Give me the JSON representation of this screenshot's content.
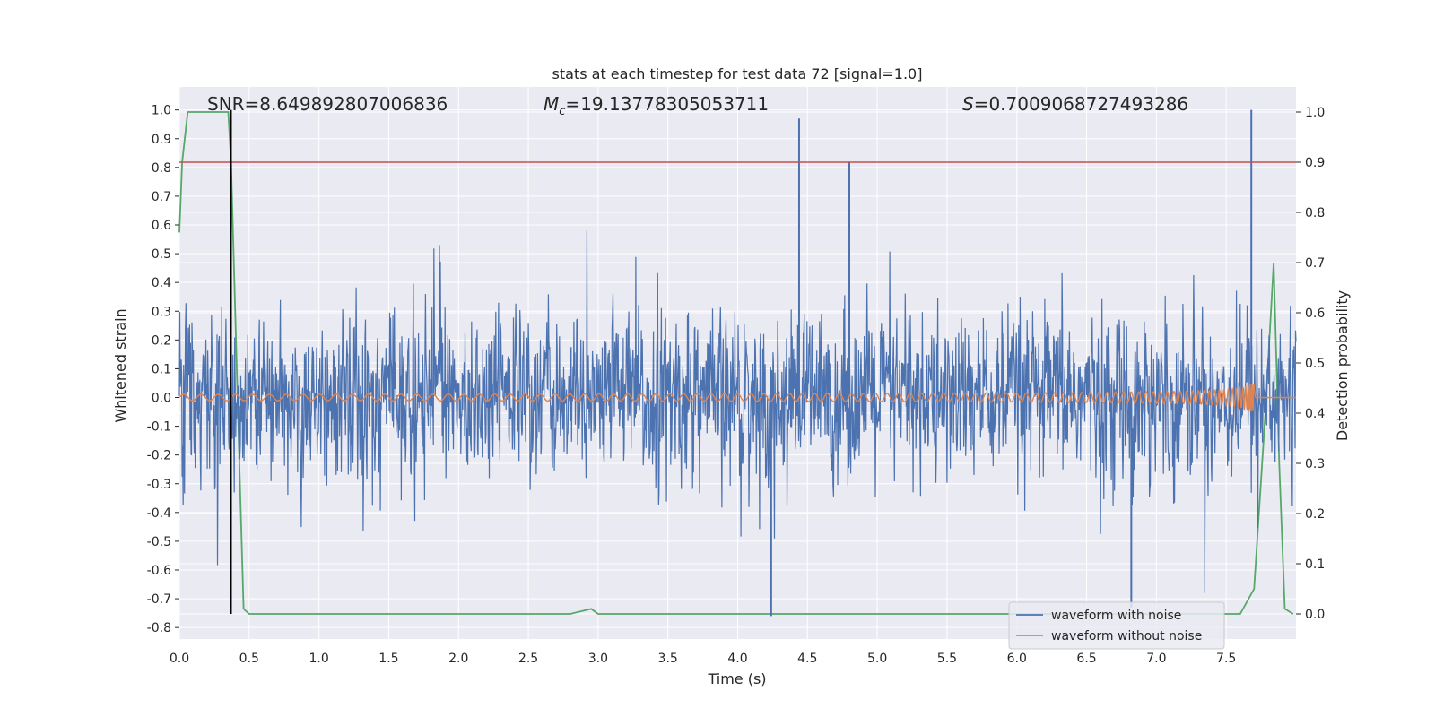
{
  "chart_data": {
    "type": "line",
    "title": "stats at each timestep for test data 72 [signal=1.0]",
    "xlabel": "Time (s)",
    "ylabel": "Whitened strain",
    "y2label": "Detection probability",
    "xlim": [
      0.0,
      8.0
    ],
    "ylim": [
      -0.84,
      1.08
    ],
    "y2lim": [
      -0.05,
      1.05
    ],
    "xticks": [
      "0.0",
      "0.5",
      "1.0",
      "1.5",
      "2.0",
      "2.5",
      "3.0",
      "3.5",
      "4.0",
      "4.5",
      "5.0",
      "5.5",
      "6.0",
      "6.5",
      "7.0",
      "7.5"
    ],
    "yticks": [
      "-0.8",
      "-0.7",
      "-0.6",
      "-0.5",
      "-0.4",
      "-0.3",
      "-0.2",
      "-0.1",
      "0.0",
      "0.1",
      "0.2",
      "0.3",
      "0.4",
      "0.5",
      "0.6",
      "0.7",
      "0.8",
      "0.9",
      "1.0"
    ],
    "y2ticks": [
      "0.0",
      "0.1",
      "0.2",
      "0.3",
      "0.4",
      "0.5",
      "0.6",
      "0.7",
      "0.8",
      "0.9",
      "1.0"
    ],
    "grid": true,
    "legend_position": "lower-right",
    "annotations": {
      "snr": "SNR=8.649892807006836",
      "mc_symbol": "M",
      "mc_subscript": "c",
      "mc_value": "=19.13778305053711",
      "s_symbol": "S",
      "s_value": "=0.7009068727493286"
    },
    "threshold": {
      "axis": "right",
      "value": 0.9,
      "color": "#c44e52"
    },
    "vertical_marker": {
      "x": 0.37,
      "color": "#000000"
    },
    "series": [
      {
        "name": "waveform with noise",
        "axis": "left",
        "color": "#4c72b0",
        "description_envelope": {
          "typical_amplitude": 0.33,
          "peaks": [
            {
              "x": 4.44,
              "y": 0.97
            },
            {
              "x": 7.68,
              "y": 1.0
            },
            {
              "x": 4.8,
              "y": 0.82
            },
            {
              "x": 4.24,
              "y": -0.76
            },
            {
              "x": 6.82,
              "y": -0.73
            }
          ]
        }
      },
      {
        "name": "waveform without noise",
        "axis": "left",
        "color": "#dd8452",
        "chirp": {
          "start_amplitude": 0.005,
          "peak_x": 7.67,
          "peak_amplitude_pos": 0.44,
          "peak_amplitude_neg": -0.41,
          "end_x": 7.7
        }
      },
      {
        "name": "detection probability",
        "axis": "right",
        "color": "#55a868",
        "x": [
          0.0,
          0.02,
          0.06,
          0.12,
          0.2,
          0.3,
          0.35,
          0.37,
          0.4,
          0.43,
          0.46,
          0.5,
          1.0,
          2.0,
          2.8,
          2.95,
          3.0,
          4.0,
          5.0,
          6.0,
          7.0,
          7.6,
          7.7,
          7.78,
          7.84,
          7.88,
          7.92,
          7.98
        ],
        "y": [
          0.76,
          0.9,
          1.0,
          1.0,
          1.0,
          1.0,
          1.0,
          0.9,
          0.6,
          0.3,
          0.01,
          0.0,
          0.0,
          0.0,
          0.0,
          0.01,
          0.0,
          0.0,
          0.0,
          0.0,
          0.0,
          0.0,
          0.05,
          0.4,
          0.7,
          0.3,
          0.01,
          0.0
        ]
      }
    ]
  }
}
